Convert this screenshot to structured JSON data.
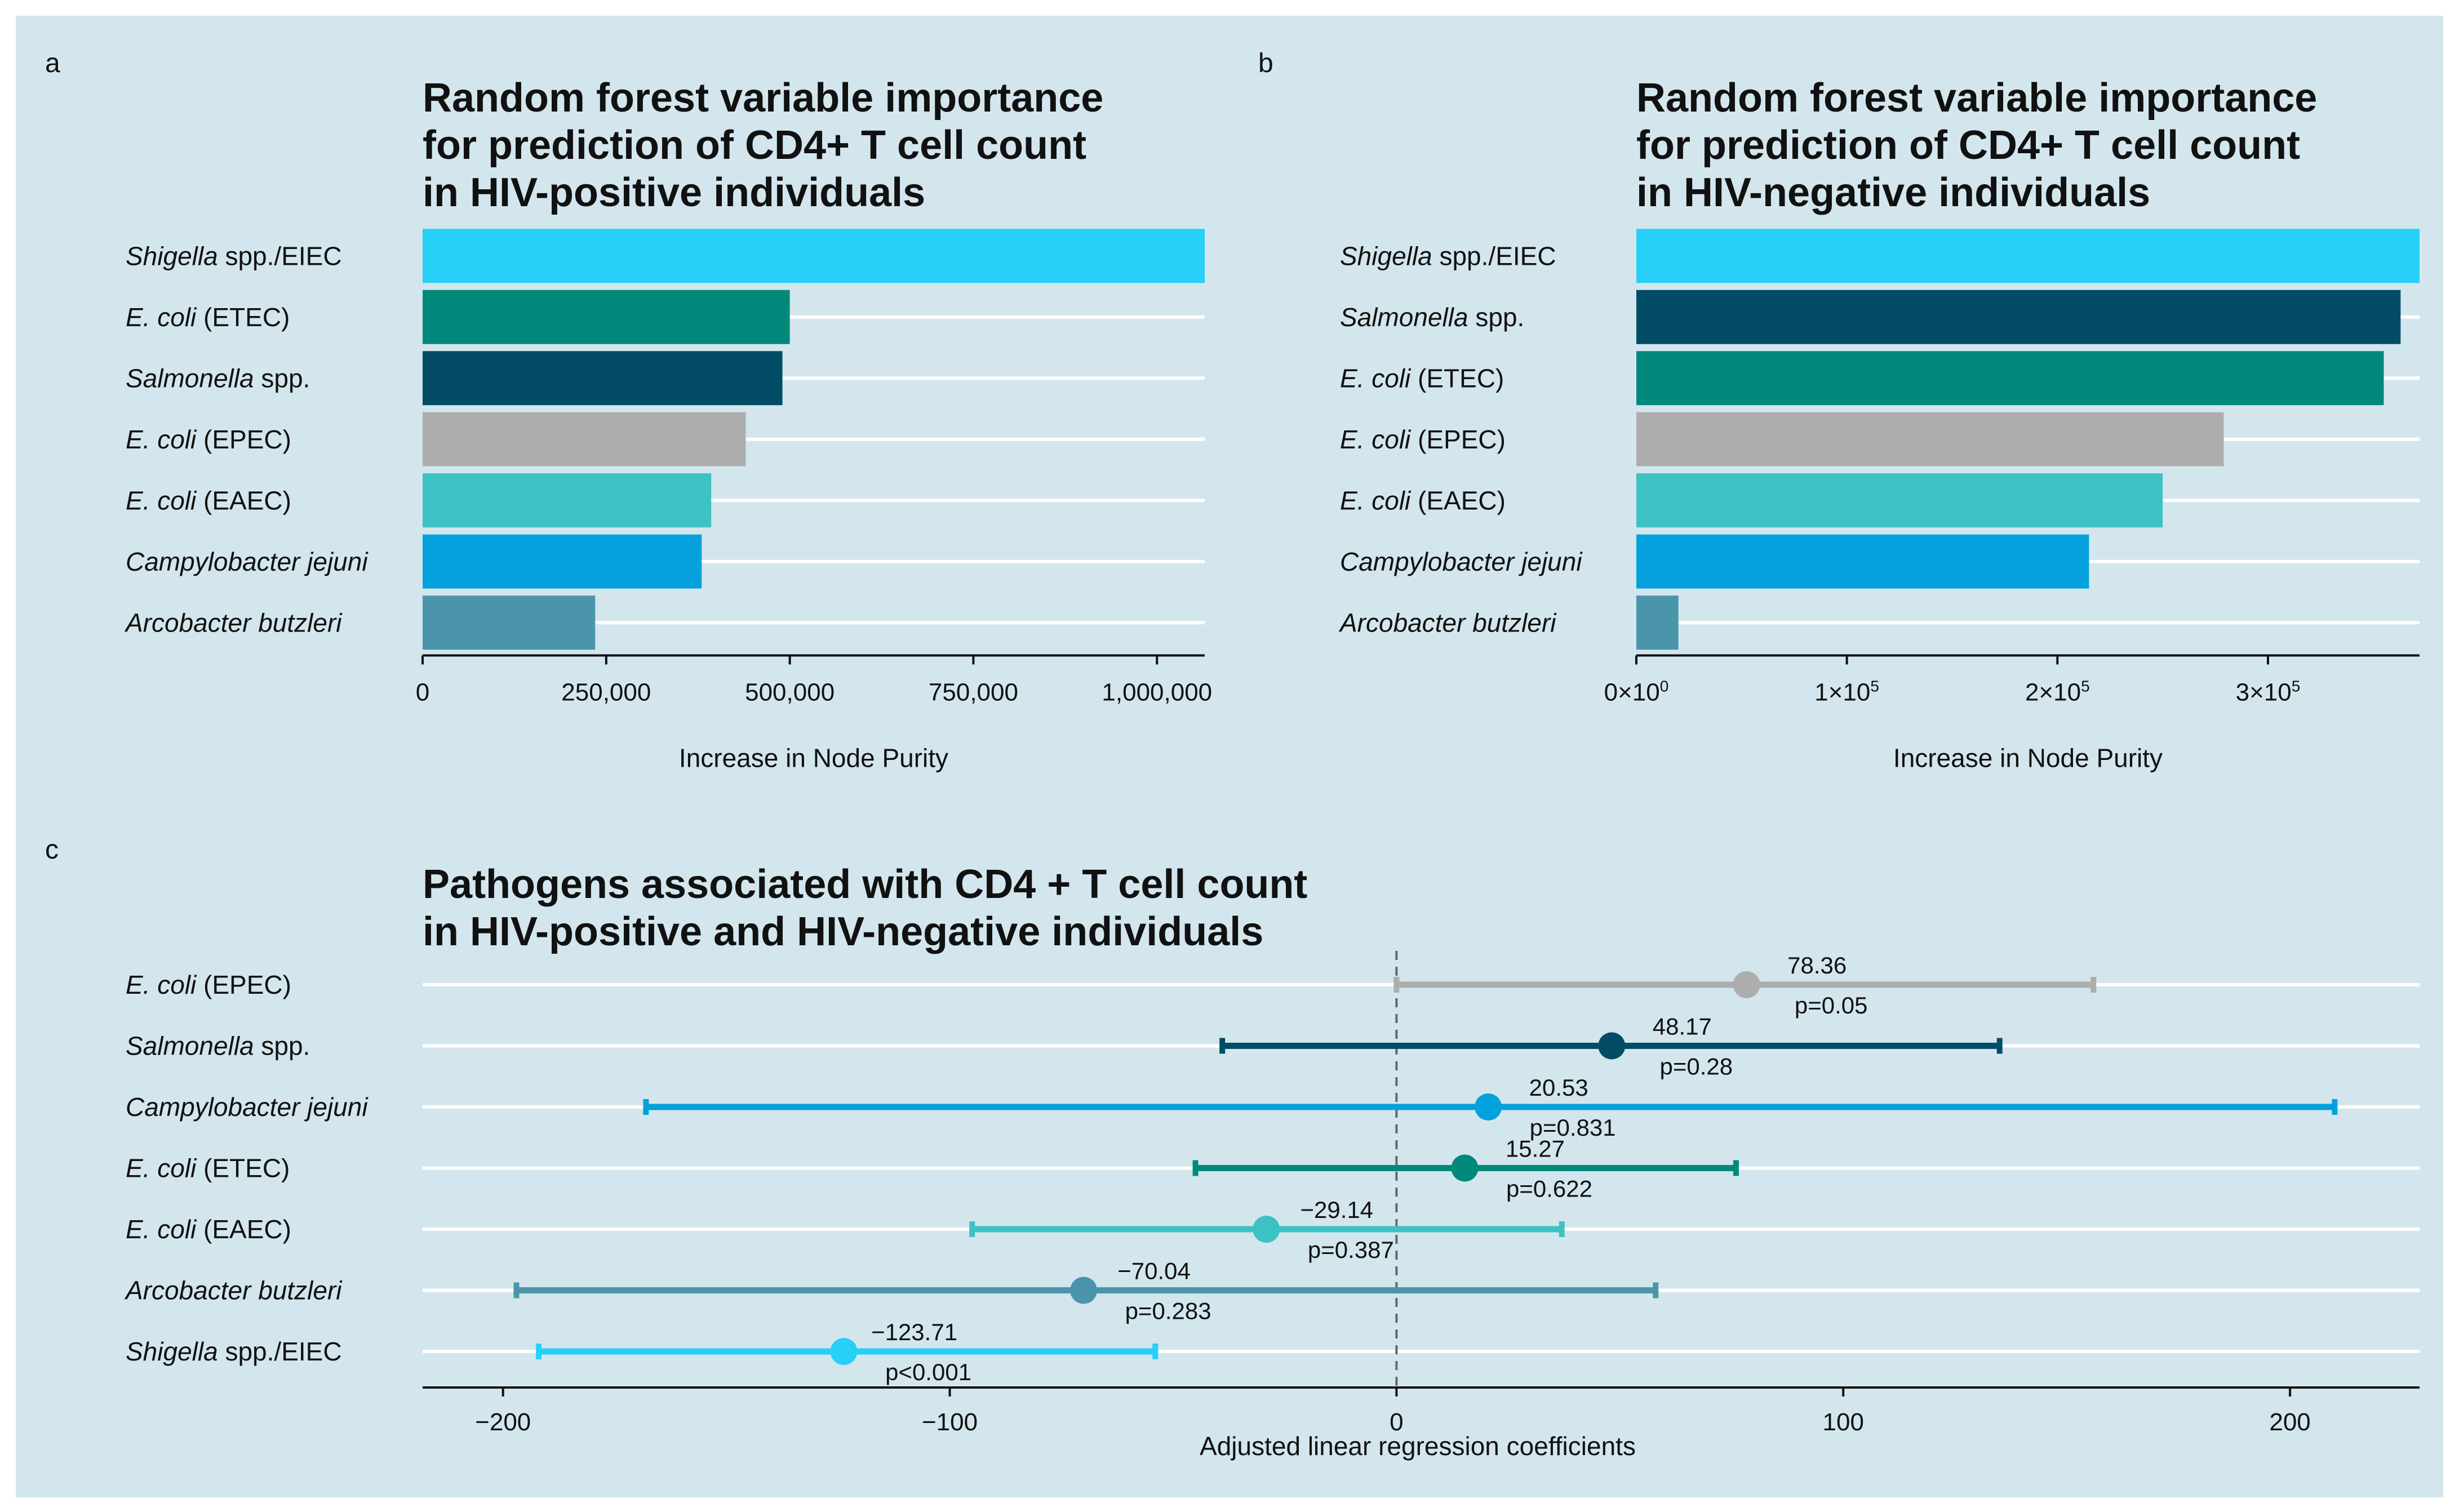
{
  "panels": {
    "a": {
      "letter": "a"
    },
    "b": {
      "letter": "b"
    },
    "c": {
      "letter": "c"
    }
  },
  "colors": {
    "background": "#d3e6ed",
    "shigella": "#26d0f6",
    "etec": "#00897b",
    "salmonella": "#024c66",
    "epec": "#adadad",
    "eaec": "#3cc2c3",
    "campylobacter": "#04a1dc",
    "arcobacter": "#4b95ab"
  },
  "chart_data": [
    {
      "id": "a",
      "type": "bar",
      "orientation": "horizontal",
      "title_lines": [
        "Random forest variable importance",
        "for prediction of CD4+ T cell count",
        "in HIV-positive individuals"
      ],
      "categories": [
        {
          "italic": "Shigella",
          "rest": " spp./EIEC",
          "color": "shigella"
        },
        {
          "italic": "E. coli",
          "rest": " (ETEC)",
          "color": "etec"
        },
        {
          "italic": "Salmonella",
          "rest": " spp.",
          "color": "salmonella"
        },
        {
          "italic": "E. coli",
          "rest": " (EPEC)",
          "color": "epec"
        },
        {
          "italic": "E. coli",
          "rest": " (EAEC)",
          "color": "eaec"
        },
        {
          "italic": "Campylobacter jejuni",
          "rest": "",
          "color": "campylobacter"
        },
        {
          "italic": "Arcobacter butzleri",
          "rest": "",
          "color": "arcobacter"
        }
      ],
      "values": [
        1065000,
        500000,
        490000,
        440000,
        393000,
        380000,
        235000
      ],
      "xlim": [
        0,
        1065000
      ],
      "ticks": [
        {
          "value": 0,
          "label": "0"
        },
        {
          "value": 250000,
          "label": "250,000"
        },
        {
          "value": 500000,
          "label": "500,000"
        },
        {
          "value": 750000,
          "label": "750,000"
        },
        {
          "value": 1000000,
          "label": "1,000,000"
        }
      ],
      "xlabel": "Increase in Node Purity"
    },
    {
      "id": "b",
      "type": "bar",
      "orientation": "horizontal",
      "title_lines": [
        "Random forest variable importance",
        "for prediction of CD4+ T cell count",
        "in HIV-negative individuals"
      ],
      "categories": [
        {
          "italic": "Shigella",
          "rest": " spp./EIEC",
          "color": "shigella"
        },
        {
          "italic": "Salmonella",
          "rest": " spp.",
          "color": "salmonella"
        },
        {
          "italic": "E. coli",
          "rest": " (ETEC)",
          "color": "etec"
        },
        {
          "italic": "E. coli",
          "rest": " (EPEC)",
          "color": "epec"
        },
        {
          "italic": "E. coli",
          "rest": " (EAEC)",
          "color": "eaec"
        },
        {
          "italic": "Campylobacter jejuni",
          "rest": "",
          "color": "campylobacter"
        },
        {
          "italic": "Arcobacter butzleri",
          "rest": "",
          "color": "arcobacter"
        }
      ],
      "values": [
        372000,
        363000,
        355000,
        279000,
        250000,
        215000,
        20000
      ],
      "xlim": [
        0,
        372000
      ],
      "ticks": [
        {
          "value": 0,
          "base": "0×10",
          "exp": "0"
        },
        {
          "value": 100000,
          "base": "1×10",
          "exp": "5"
        },
        {
          "value": 200000,
          "base": "2×10",
          "exp": "5"
        },
        {
          "value": 300000,
          "base": "3×10",
          "exp": "5"
        }
      ],
      "xlabel": "Increase in Node Purity"
    },
    {
      "id": "c",
      "type": "forest",
      "title_lines": [
        "Pathogens associated with CD4 + T cell count",
        "in HIV-positive and HIV-negative individuals"
      ],
      "categories": [
        {
          "italic": "E. coli",
          "rest": " (EPEC)",
          "color": "epec"
        },
        {
          "italic": "Salmonella",
          "rest": " spp.",
          "color": "salmonella"
        },
        {
          "italic": "Campylobacter jejuni",
          "rest": "",
          "color": "campylobacter"
        },
        {
          "italic": "E. coli",
          "rest": " (ETEC)",
          "color": "etec"
        },
        {
          "italic": "E. coli",
          "rest": " (EAEC)",
          "color": "eaec"
        },
        {
          "italic": "Arcobacter butzleri",
          "rest": "",
          "color": "arcobacter"
        },
        {
          "italic": "Shigella",
          "rest": " spp./EIEC",
          "color": "shigella"
        }
      ],
      "estimates": [
        78.36,
        48.17,
        20.53,
        15.27,
        -29.14,
        -70.04,
        -123.71
      ],
      "ci_low": [
        0,
        -39,
        -168,
        -45,
        -95,
        -197,
        -192
      ],
      "ci_high": [
        156,
        135,
        210,
        76,
        37,
        58,
        -54
      ],
      "estimate_labels": [
        "78.36",
        "48.17",
        "20.53",
        "15.27",
        "−29.14",
        "−70.04",
        "−123.71"
      ],
      "p_labels": [
        "p=0.05",
        "p=0.28",
        "p=0.831",
        "p=0.622",
        "p=0.387",
        "p=0.283",
        "p<0.001"
      ],
      "xlim": [
        -218,
        229
      ],
      "ticks": [
        {
          "value": -200,
          "label": "−200"
        },
        {
          "value": -100,
          "label": "−100"
        },
        {
          "value": 0,
          "label": "0"
        },
        {
          "value": 100,
          "label": "100"
        },
        {
          "value": 200,
          "label": "200"
        }
      ],
      "xlabel": "Adjusted linear regression coefficients",
      "reference_line": 0
    }
  ]
}
